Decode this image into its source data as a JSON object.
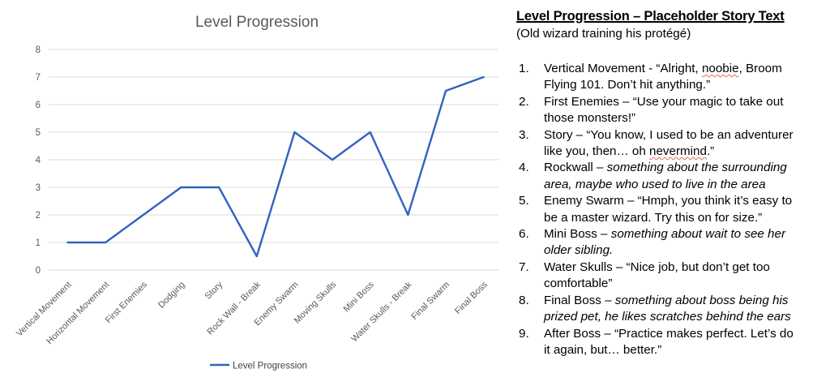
{
  "chart_data": {
    "type": "line",
    "title": "Level Progression",
    "categories": [
      "Vertical Movement",
      "Horizontal Movement",
      "First Enemies",
      "Dodging",
      "Story",
      "Rock Wall - Break",
      "Enemy Swarm",
      "Moving Skulls",
      "Mini Boss",
      "Water Skulls - Break",
      "Final Swarm",
      "Final Boss"
    ],
    "series": [
      {
        "name": "Level Progression",
        "values": [
          1,
          1,
          2,
          3,
          3,
          0.5,
          5,
          4,
          5,
          2,
          6.5,
          7
        ]
      }
    ],
    "ylim": [
      0,
      8
    ],
    "ytick_step": 1,
    "grid": true,
    "legend_position": "bottom",
    "colors": {
      "line": "#3262C1",
      "grid": "#D9D9D9",
      "axis_text": "#595959",
      "title": "#595959",
      "legend_text": "#404040"
    }
  },
  "story_panel": {
    "title": "Level Progression – Placeholder Story Text",
    "subtitle": "(Old wizard training his protégé)",
    "items": [
      {
        "num": "1.",
        "lines": [
          [
            {
              "t": "Vertical Movement - “Alright, "
            },
            {
              "t": "noobie",
              "sq": true
            },
            {
              "t": ", Broom"
            }
          ],
          [
            {
              "t": "Flying 101. Don’t hit anything.”"
            }
          ]
        ]
      },
      {
        "num": "2.",
        "lines": [
          [
            {
              "t": "First Enemies – “Use your magic to take out"
            }
          ],
          [
            {
              "t": "those monsters!”"
            }
          ]
        ]
      },
      {
        "num": "3.",
        "lines": [
          [
            {
              "t": "Story – “You know, I used to be an adventurer"
            }
          ],
          [
            {
              "t": "like you, then… oh "
            },
            {
              "t": "nevermind",
              "sq": true
            },
            {
              "t": ".”"
            }
          ]
        ]
      },
      {
        "num": "4.",
        "lines": [
          [
            {
              "t": "Rockwall – "
            },
            {
              "t": "something about the surrounding",
              "i": true
            }
          ],
          [
            {
              "t": "area, maybe who used to live in the area",
              "i": true
            }
          ]
        ]
      },
      {
        "num": "5.",
        "lines": [
          [
            {
              "t": "Enemy Swarm – “Hmph, you think it’s easy to"
            }
          ],
          [
            {
              "t": "be a master wizard. Try this on for size.”"
            }
          ]
        ]
      },
      {
        "num": "6.",
        "lines": [
          [
            {
              "t": "Mini Boss – "
            },
            {
              "t": "something about wait to see her",
              "i": true
            }
          ],
          [
            {
              "t": "older sibling.",
              "i": true
            }
          ]
        ]
      },
      {
        "num": "7.",
        "lines": [
          [
            {
              "t": "Water Skulls – “Nice job, but don’t get too"
            }
          ],
          [
            {
              "t": "comfortable”"
            }
          ]
        ]
      },
      {
        "num": "8.",
        "lines": [
          [
            {
              "t": "Final Boss – "
            },
            {
              "t": "something about boss being his",
              "i": true
            }
          ],
          [
            {
              "t": "prized pet, he likes scratches behind the ears",
              "i": true
            }
          ]
        ]
      },
      {
        "num": "9.",
        "lines": [
          [
            {
              "t": "After Boss – “Practice makes perfect. Let’s do"
            }
          ],
          [
            {
              "t": "it again, but… better.”"
            }
          ]
        ]
      }
    ]
  }
}
